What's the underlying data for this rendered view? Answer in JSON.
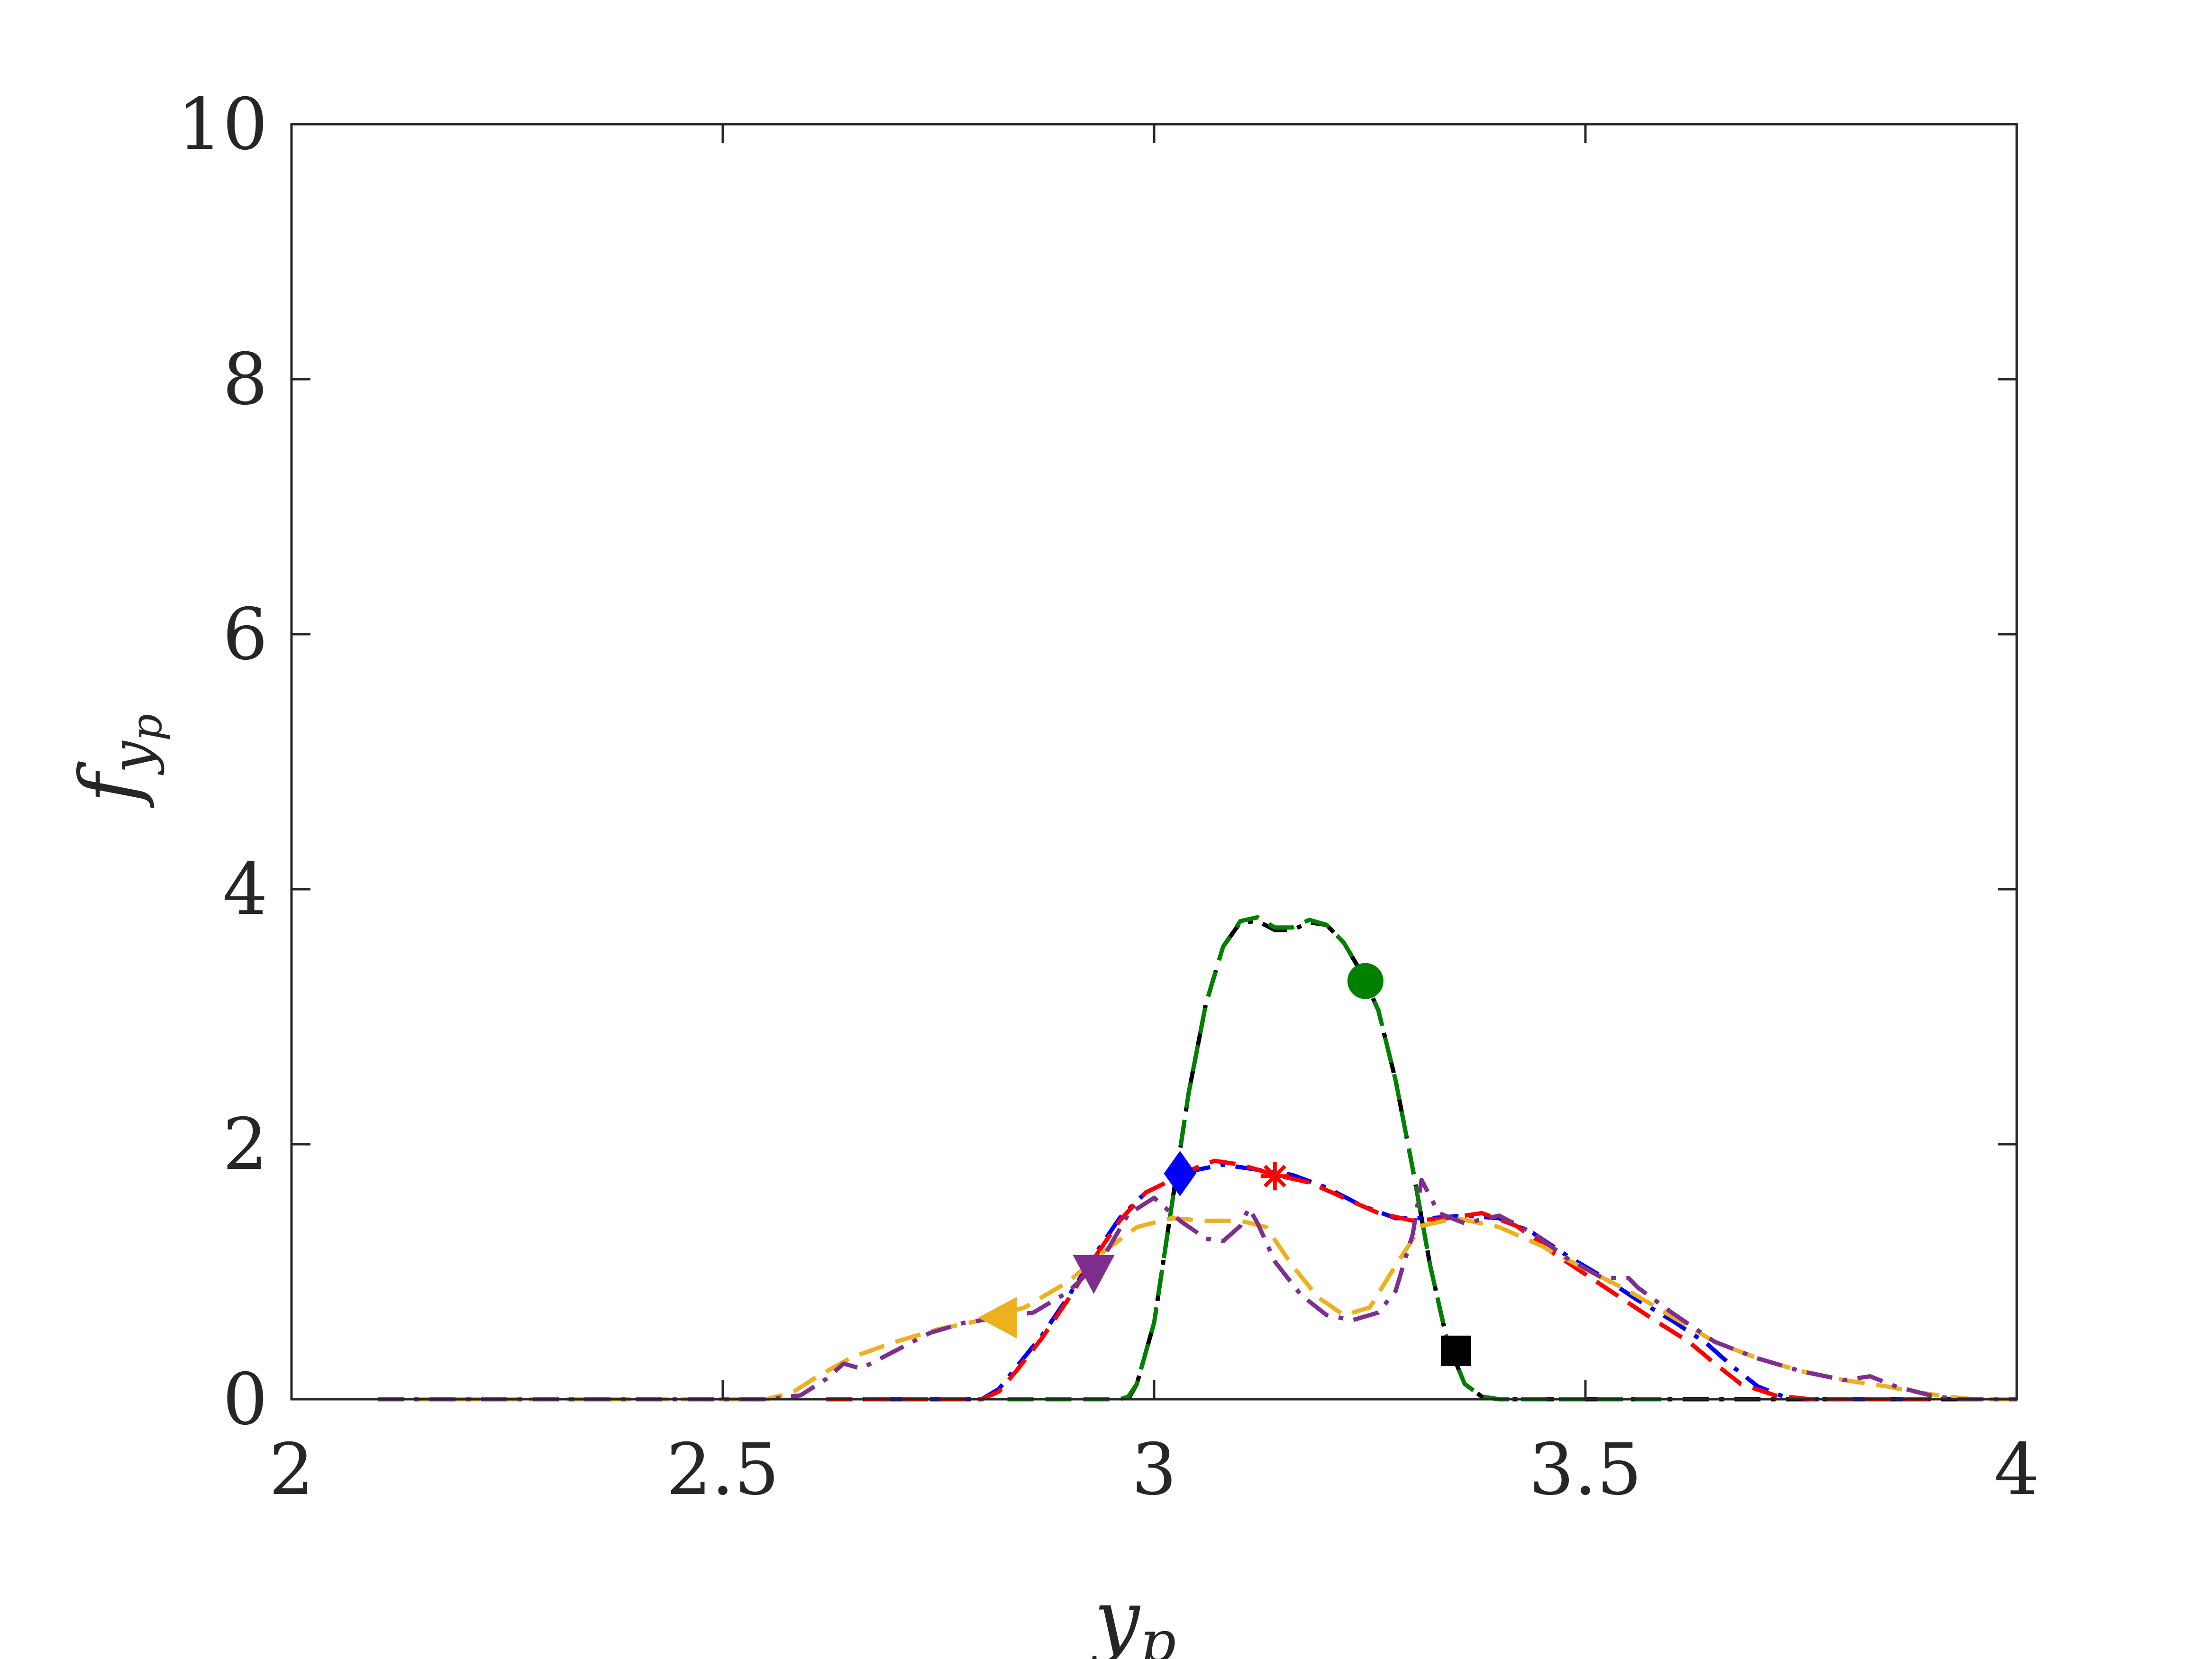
{
  "chart_data": {
    "type": "line",
    "title": "",
    "xlabel": "y",
    "xlabel_subscript": "p",
    "ylabel": "f",
    "ylabel_subscript": "y",
    "ylabel_subsubscript": "p",
    "xlim": [
      2,
      4
    ],
    "ylim": [
      0,
      10
    ],
    "xticks": [
      2,
      2.5,
      3,
      3.5,
      4
    ],
    "xtick_labels": [
      "2",
      "2.5",
      "3",
      "3.5",
      "4"
    ],
    "yticks": [
      0,
      2,
      4,
      6,
      8,
      10
    ],
    "ytick_labels": [
      "0",
      "2",
      "4",
      "6",
      "8",
      "10"
    ],
    "grid": false,
    "legend": "none",
    "series": [
      {
        "color": "#000000",
        "dash": "dashdot",
        "marker": "square",
        "marker_at": [
          3.35,
          0.38
        ],
        "points": [
          [
            2.97,
            0
          ],
          [
            2.98,
            0.12
          ],
          [
            3.0,
            0.6
          ],
          [
            3.02,
            1.5
          ],
          [
            3.04,
            2.4
          ],
          [
            3.06,
            3.1
          ],
          [
            3.08,
            3.55
          ],
          [
            3.1,
            3.74
          ],
          [
            3.12,
            3.75
          ],
          [
            3.14,
            3.68
          ],
          [
            3.16,
            3.68
          ],
          [
            3.18,
            3.74
          ],
          [
            3.2,
            3.72
          ],
          [
            3.22,
            3.58
          ],
          [
            3.24,
            3.35
          ],
          [
            3.26,
            3.05
          ],
          [
            3.28,
            2.5
          ],
          [
            3.3,
            1.8
          ],
          [
            3.32,
            1.05
          ],
          [
            3.34,
            0.45
          ],
          [
            3.36,
            0.12
          ],
          [
            3.38,
            0.02
          ],
          [
            3.4,
            0
          ],
          [
            3.6,
            0
          ],
          [
            4.0,
            0
          ]
        ]
      },
      {
        "color": "#008000",
        "dash": "dash",
        "marker": "circle",
        "marker_at": [
          3.245,
          3.28
        ],
        "points": [
          [
            2.83,
            0
          ],
          [
            2.96,
            0
          ],
          [
            2.97,
            0.02
          ],
          [
            2.98,
            0.12
          ],
          [
            3.0,
            0.6
          ],
          [
            3.02,
            1.5
          ],
          [
            3.04,
            2.4
          ],
          [
            3.06,
            3.1
          ],
          [
            3.08,
            3.55
          ],
          [
            3.1,
            3.75
          ],
          [
            3.12,
            3.78
          ],
          [
            3.14,
            3.7
          ],
          [
            3.16,
            3.7
          ],
          [
            3.18,
            3.76
          ],
          [
            3.2,
            3.72
          ],
          [
            3.22,
            3.58
          ],
          [
            3.24,
            3.35
          ],
          [
            3.26,
            3.05
          ],
          [
            3.28,
            2.5
          ],
          [
            3.3,
            1.8
          ],
          [
            3.32,
            1.05
          ],
          [
            3.34,
            0.45
          ],
          [
            3.36,
            0.12
          ],
          [
            3.38,
            0.02
          ],
          [
            3.4,
            0
          ],
          [
            3.6,
            0
          ]
        ]
      },
      {
        "color": "#0000ff",
        "dash": "dashdot",
        "marker": "diamond",
        "marker_at": [
          3.03,
          1.77
        ],
        "points": [
          [
            2.62,
            0
          ],
          [
            2.8,
            0
          ],
          [
            2.82,
            0.08
          ],
          [
            2.84,
            0.25
          ],
          [
            2.87,
            0.5
          ],
          [
            2.9,
            0.8
          ],
          [
            2.93,
            1.12
          ],
          [
            2.96,
            1.42
          ],
          [
            2.99,
            1.62
          ],
          [
            3.02,
            1.72
          ],
          [
            3.05,
            1.8
          ],
          [
            3.08,
            1.84
          ],
          [
            3.12,
            1.8
          ],
          [
            3.16,
            1.76
          ],
          [
            3.2,
            1.66
          ],
          [
            3.24,
            1.52
          ],
          [
            3.28,
            1.42
          ],
          [
            3.32,
            1.42
          ],
          [
            3.36,
            1.44
          ],
          [
            3.4,
            1.42
          ],
          [
            3.44,
            1.3
          ],
          [
            3.48,
            1.12
          ],
          [
            3.52,
            0.96
          ],
          [
            3.56,
            0.78
          ],
          [
            3.6,
            0.62
          ],
          [
            3.64,
            0.44
          ],
          [
            3.67,
            0.26
          ],
          [
            3.7,
            0.1
          ],
          [
            3.73,
            0.02
          ],
          [
            3.76,
            0
          ],
          [
            3.9,
            0
          ]
        ]
      },
      {
        "color": "#ff0000",
        "dash": "dash",
        "marker": "asterisk",
        "marker_at": [
          3.14,
          1.75
        ],
        "points": [
          [
            2.62,
            0
          ],
          [
            2.8,
            0
          ],
          [
            2.82,
            0.06
          ],
          [
            2.84,
            0.22
          ],
          [
            2.87,
            0.48
          ],
          [
            2.9,
            0.78
          ],
          [
            2.93,
            1.1
          ],
          [
            2.96,
            1.4
          ],
          [
            2.99,
            1.62
          ],
          [
            3.02,
            1.72
          ],
          [
            3.05,
            1.82
          ],
          [
            3.07,
            1.87
          ],
          [
            3.1,
            1.84
          ],
          [
            3.14,
            1.76
          ],
          [
            3.18,
            1.7
          ],
          [
            3.22,
            1.58
          ],
          [
            3.26,
            1.46
          ],
          [
            3.3,
            1.4
          ],
          [
            3.34,
            1.42
          ],
          [
            3.38,
            1.46
          ],
          [
            3.42,
            1.36
          ],
          [
            3.46,
            1.16
          ],
          [
            3.5,
            0.98
          ],
          [
            3.54,
            0.8
          ],
          [
            3.58,
            0.62
          ],
          [
            3.62,
            0.45
          ],
          [
            3.65,
            0.28
          ],
          [
            3.68,
            0.12
          ],
          [
            3.72,
            0.03
          ],
          [
            3.76,
            0
          ],
          [
            3.9,
            0
          ]
        ]
      },
      {
        "color": "#edb120",
        "dash": "dash",
        "marker": "triangle-left",
        "marker_at": [
          2.82,
          0.64
        ],
        "points": [
          [
            2.1,
            0
          ],
          [
            2.55,
            0
          ],
          [
            2.58,
            0.05
          ],
          [
            2.61,
            0.18
          ],
          [
            2.65,
            0.33
          ],
          [
            2.7,
            0.45
          ],
          [
            2.75,
            0.55
          ],
          [
            2.8,
            0.62
          ],
          [
            2.85,
            0.72
          ],
          [
            2.9,
            0.92
          ],
          [
            2.94,
            1.15
          ],
          [
            2.98,
            1.35
          ],
          [
            3.02,
            1.42
          ],
          [
            3.06,
            1.4
          ],
          [
            3.1,
            1.4
          ],
          [
            3.13,
            1.35
          ],
          [
            3.16,
            1.05
          ],
          [
            3.19,
            0.8
          ],
          [
            3.22,
            0.66
          ],
          [
            3.25,
            0.72
          ],
          [
            3.28,
            1.05
          ],
          [
            3.31,
            1.36
          ],
          [
            3.35,
            1.42
          ],
          [
            3.4,
            1.35
          ],
          [
            3.45,
            1.2
          ],
          [
            3.5,
            1.02
          ],
          [
            3.55,
            0.85
          ],
          [
            3.6,
            0.65
          ],
          [
            3.65,
            0.45
          ],
          [
            3.7,
            0.32
          ],
          [
            3.75,
            0.22
          ],
          [
            3.8,
            0.15
          ],
          [
            3.85,
            0.1
          ],
          [
            3.88,
            0.06
          ],
          [
            3.92,
            0.02
          ],
          [
            3.95,
            0
          ],
          [
            4.0,
            0
          ]
        ]
      },
      {
        "color": "#7e2f8e",
        "dash": "dashdot",
        "marker": "triangle-down",
        "marker_at": [
          2.93,
          0.99
        ],
        "points": [
          [
            2.1,
            0
          ],
          [
            2.55,
            0
          ],
          [
            2.59,
            0.03
          ],
          [
            2.62,
            0.16
          ],
          [
            2.64,
            0.28
          ],
          [
            2.66,
            0.24
          ],
          [
            2.7,
            0.38
          ],
          [
            2.74,
            0.52
          ],
          [
            2.78,
            0.6
          ],
          [
            2.82,
            0.64
          ],
          [
            2.86,
            0.68
          ],
          [
            2.9,
            0.84
          ],
          [
            2.94,
            1.1
          ],
          [
            2.97,
            1.45
          ],
          [
            3.0,
            1.58
          ],
          [
            3.03,
            1.4
          ],
          [
            3.06,
            1.26
          ],
          [
            3.08,
            1.24
          ],
          [
            3.1,
            1.36
          ],
          [
            3.11,
            1.5
          ],
          [
            3.12,
            1.38
          ],
          [
            3.14,
            1.08
          ],
          [
            3.17,
            0.82
          ],
          [
            3.2,
            0.66
          ],
          [
            3.23,
            0.62
          ],
          [
            3.26,
            0.68
          ],
          [
            3.28,
            0.85
          ],
          [
            3.3,
            1.3
          ],
          [
            3.31,
            1.72
          ],
          [
            3.33,
            1.46
          ],
          [
            3.36,
            1.38
          ],
          [
            3.4,
            1.44
          ],
          [
            3.44,
            1.3
          ],
          [
            3.48,
            1.1
          ],
          [
            3.52,
            0.95
          ],
          [
            3.55,
            0.95
          ],
          [
            3.56,
            0.88
          ],
          [
            3.6,
            0.68
          ],
          [
            3.65,
            0.45
          ],
          [
            3.7,
            0.32
          ],
          [
            3.75,
            0.22
          ],
          [
            3.8,
            0.15
          ],
          [
            3.83,
            0.18
          ],
          [
            3.86,
            0.1
          ],
          [
            3.9,
            0.03
          ],
          [
            3.93,
            0
          ],
          [
            4.0,
            0
          ]
        ]
      }
    ]
  }
}
